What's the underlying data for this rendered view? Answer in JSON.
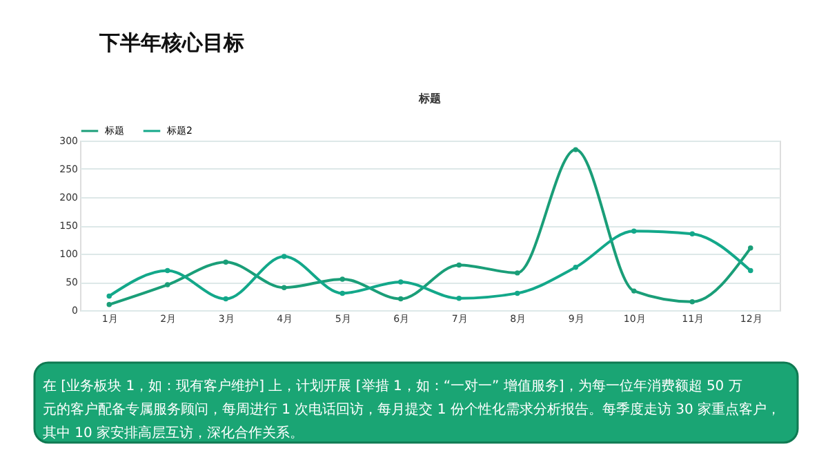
{
  "chart_data": {
    "type": "line",
    "title": "标题",
    "categories": [
      "1月",
      "2月",
      "3月",
      "4月",
      "5月",
      "6月",
      "7月",
      "8月",
      "9月",
      "10月",
      "11月",
      "12月"
    ],
    "series": [
      {
        "name": "标题",
        "color": "#1a9e78",
        "values": [
          10,
          45,
          85,
          40,
          55,
          20,
          80,
          66,
          284,
          34,
          15,
          110
        ]
      },
      {
        "name": "标题2",
        "color": "#13a88a",
        "values": [
          25,
          70,
          20,
          95,
          30,
          50,
          21,
          30,
          76,
          140,
          135,
          70
        ]
      }
    ],
    "ylim": [
      0,
      300
    ],
    "yticks": [
      0,
      50,
      100,
      150,
      200,
      250,
      300
    ],
    "grid": "y",
    "legend": "top",
    "marker": "circle",
    "line_style": "solid",
    "annotations": [
      "下半年核心目标",
      "在 [业务板块 1，如：现有客户维护] 上，计划开展 [举措 1，如：“一对一” 增值服务]，为每一位年消费额超 50 万元的客户配备专属服务顾问，每周进行 1 次电话回访，每月提交 1 份个性化需求分析报告。每季度走访 30 家重点客户，其中 10 家安排高层互访，深化合作关系。"
    ]
  }
}
